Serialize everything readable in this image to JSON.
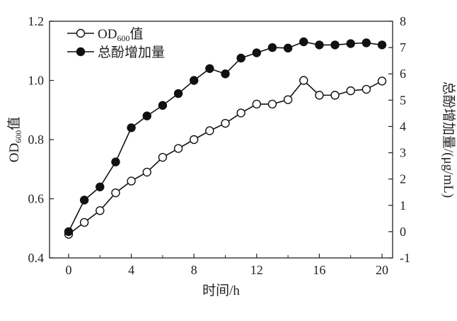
{
  "chart_data": {
    "type": "line",
    "title": "",
    "xlabel": "时间/h",
    "ylabel_left": {
      "main": "OD",
      "sub": "600",
      "suffix": "值"
    },
    "ylabel_right": "总酚增加量/(μg/mL)",
    "xlim": [
      0,
      20
    ],
    "ylim_left": [
      0.4,
      1.2
    ],
    "ylim_right": [
      -1,
      8
    ],
    "xticks": [
      0,
      4,
      8,
      12,
      16,
      20
    ],
    "yticks_left": [
      "0.4",
      "0.6",
      "0.8",
      "1.0",
      "1.2"
    ],
    "yticks_right": [
      "-1",
      "0",
      "1",
      "2",
      "3",
      "4",
      "5",
      "6",
      "7",
      "8"
    ],
    "grid": false,
    "legend_position": "top-left",
    "x": [
      0,
      1,
      2,
      3,
      4,
      5,
      6,
      7,
      8,
      9,
      10,
      11,
      12,
      13,
      14,
      15,
      16,
      17,
      18,
      19,
      20
    ],
    "series": [
      {
        "name": "OD600值",
        "legend": {
          "main": "OD",
          "sub": "600",
          "suffix": "值"
        },
        "axis": "left",
        "marker": "open-circle",
        "values": [
          0.48,
          0.52,
          0.56,
          0.62,
          0.66,
          0.69,
          0.74,
          0.77,
          0.8,
          0.83,
          0.855,
          0.89,
          0.92,
          0.92,
          0.935,
          1.0,
          0.95,
          0.95,
          0.965,
          0.97,
          0.998
        ]
      },
      {
        "name": "总酚增加量",
        "legend": {
          "main": "总酚增加量"
        },
        "axis": "right",
        "marker": "filled-circle",
        "values": [
          0,
          1.2,
          1.7,
          2.65,
          3.95,
          4.4,
          4.8,
          5.25,
          5.75,
          6.2,
          6.0,
          6.6,
          6.8,
          7.0,
          6.98,
          7.22,
          7.1,
          7.1,
          7.15,
          7.18,
          7.1
        ]
      }
    ]
  }
}
